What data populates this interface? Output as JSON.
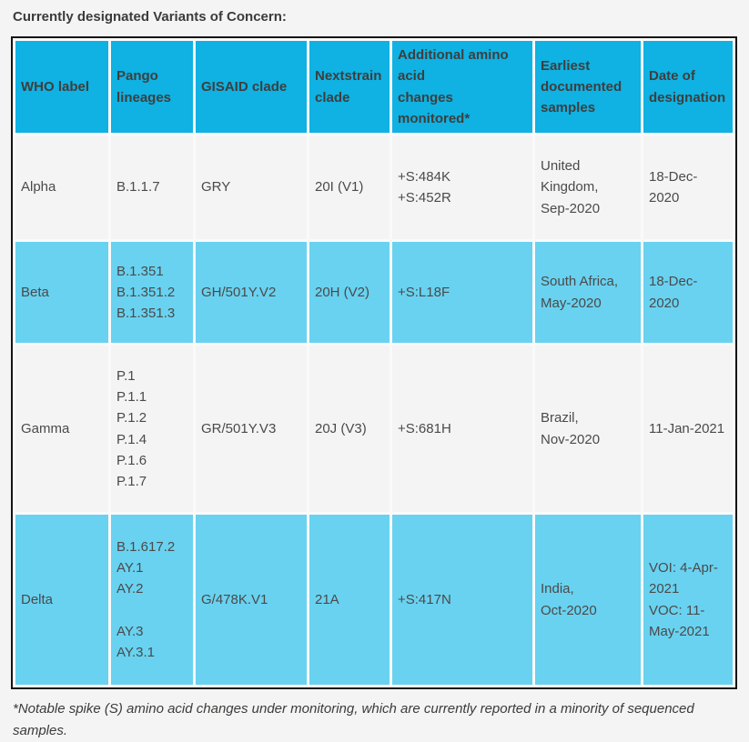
{
  "page": {
    "title": "Currently designated Variants of Concern:",
    "footnote": "*Notable spike (S) amino acid changes under monitoring, which are currently reported in a minority of sequenced samples."
  },
  "colors": {
    "header_bg": "#0FB2E2",
    "highlight_row_bg": "#69D2F0",
    "plain_row_bg": "#F4F4F4",
    "cell_gap": "#FAFAFA",
    "table_border": "#141414",
    "page_bg": "#F3F4F3",
    "text": "#4A4A4A"
  },
  "table": {
    "headers": [
      "WHO label",
      "Pango\nlineages",
      "GISAID clade",
      "Nextstrain\nclade",
      "Additional amino\nacid\nchanges monitored*",
      "Earliest\ndocumented\nsamples",
      "Date of\ndesignation"
    ],
    "rows": [
      {
        "who_label": "Alpha",
        "pango_lineages": "B.1.1.7",
        "gisaid_clade": "GRY",
        "nextstrain_clade": "20I (V1)",
        "additional_changes": "+S:484K\n+S:452R",
        "earliest_samples": "United\nKingdom,\nSep-2020",
        "date_of_designation": "18-Dec-2020",
        "highlighted": false
      },
      {
        "who_label": "Beta",
        "pango_lineages": "B.1.351\nB.1.351.2\nB.1.351.3",
        "gisaid_clade": "GH/501Y.V2",
        "nextstrain_clade": "20H (V2)",
        "additional_changes": "+S:L18F",
        "earliest_samples": "South Africa,\nMay-2020",
        "date_of_designation": "18-Dec-2020",
        "highlighted": true
      },
      {
        "who_label": "Gamma",
        "pango_lineages": "P.1\nP.1.1\nP.1.2\nP.1.4\nP.1.6\nP.1.7",
        "gisaid_clade": "GR/501Y.V3",
        "nextstrain_clade": "20J (V3)",
        "additional_changes": "+S:681H",
        "earliest_samples": "Brazil,\nNov-2020",
        "date_of_designation": "11-Jan-2021",
        "highlighted": false
      },
      {
        "who_label": "Delta",
        "pango_lineages": "B.1.617.2\nAY.1\nAY.2\n\nAY.3\nAY.3.1",
        "gisaid_clade": "G/478K.V1",
        "nextstrain_clade": "21A",
        "additional_changes": "+S:417N",
        "earliest_samples": "India,\nOct-2020",
        "date_of_designation": "VOI: 4-Apr-\n2021\nVOC: 11-\nMay-2021",
        "highlighted": true
      }
    ]
  }
}
